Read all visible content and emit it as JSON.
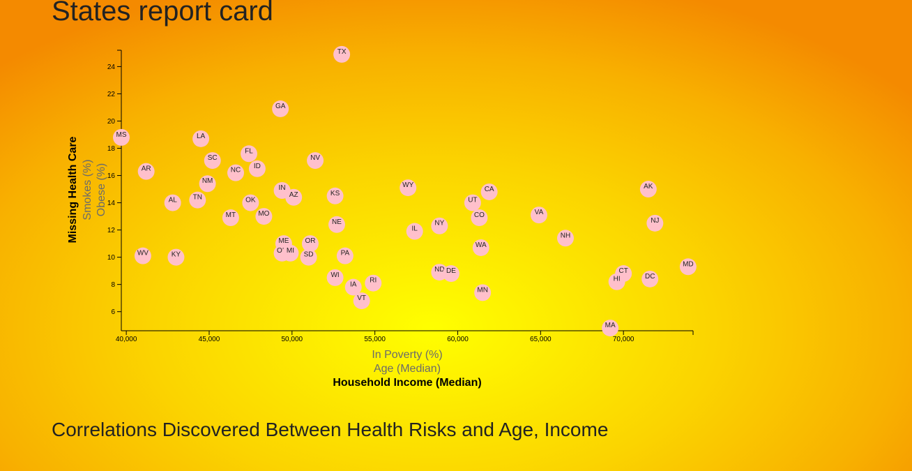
{
  "page": {
    "title": "States report card",
    "section_heading": "Correlations Discovered Between Health Risks and Age, Income"
  },
  "colors": {
    "marker_fill": "#ffc0cb",
    "axis": "#000000",
    "inactive_label": "#6b6b6b",
    "active_label": "#000000"
  },
  "chart_data": {
    "type": "scatter",
    "xlabel": "Household Income (Median)",
    "ylabel": "Missing Health Care",
    "x_axis_options": [
      {
        "label": "In Poverty (%)",
        "active": false
      },
      {
        "label": "Age (Median)",
        "active": false
      },
      {
        "label": "Household Income (Median)",
        "active": true
      }
    ],
    "y_axis_options": [
      {
        "label": "Missing Health Care",
        "active": true
      },
      {
        "label": "Smokes (%)",
        "active": false
      },
      {
        "label": "Obese (%)",
        "active": false
      }
    ],
    "xlim": [
      39700,
      74200
    ],
    "ylim": [
      4.6,
      25.2
    ],
    "x_ticks": [
      40000,
      45000,
      50000,
      55000,
      60000,
      65000,
      70000
    ],
    "x_tick_labels": [
      "40,000",
      "45,000",
      "50,000",
      "55,000",
      "60,000",
      "65,000",
      "70,000"
    ],
    "y_ticks": [
      6,
      8,
      10,
      12,
      14,
      16,
      18,
      20,
      22,
      24
    ],
    "y_tick_labels": [
      "6",
      "8",
      "10",
      "12",
      "14",
      "16",
      "18",
      "20",
      "22",
      "24"
    ],
    "grid": false,
    "points": [
      {
        "abbr": "TX",
        "x": 53000,
        "y": 24.9
      },
      {
        "abbr": "GA",
        "x": 49300,
        "y": 20.9
      },
      {
        "abbr": "MS",
        "x": 39700,
        "y": 18.8
      },
      {
        "abbr": "LA",
        "x": 44500,
        "y": 18.7
      },
      {
        "abbr": "FL",
        "x": 47400,
        "y": 17.6
      },
      {
        "abbr": "SC",
        "x": 45200,
        "y": 17.1
      },
      {
        "abbr": "NV",
        "x": 51400,
        "y": 17.1
      },
      {
        "abbr": "ID",
        "x": 47900,
        "y": 16.5
      },
      {
        "abbr": "AR",
        "x": 41200,
        "y": 16.3
      },
      {
        "abbr": "NC",
        "x": 46600,
        "y": 16.2
      },
      {
        "abbr": "NM",
        "x": 44900,
        "y": 15.4
      },
      {
        "abbr": "WY",
        "x": 57000,
        "y": 15.1
      },
      {
        "abbr": "AK",
        "x": 71500,
        "y": 15.0
      },
      {
        "abbr": "CA",
        "x": 61900,
        "y": 14.8
      },
      {
        "abbr": "IN",
        "x": 49400,
        "y": 14.9
      },
      {
        "abbr": "KS",
        "x": 52600,
        "y": 14.5
      },
      {
        "abbr": "AZ",
        "x": 50100,
        "y": 14.4
      },
      {
        "abbr": "TN",
        "x": 44300,
        "y": 14.2
      },
      {
        "abbr": "AL",
        "x": 42800,
        "y": 14.0
      },
      {
        "abbr": "OK",
        "x": 47500,
        "y": 14.0
      },
      {
        "abbr": "UT",
        "x": 60900,
        "y": 14.0
      },
      {
        "abbr": "VA",
        "x": 64900,
        "y": 13.1
      },
      {
        "abbr": "MT",
        "x": 46300,
        "y": 12.9
      },
      {
        "abbr": "MO",
        "x": 48300,
        "y": 13.0
      },
      {
        "abbr": "CO",
        "x": 61300,
        "y": 12.9
      },
      {
        "abbr": "NJ",
        "x": 71900,
        "y": 12.5
      },
      {
        "abbr": "NE",
        "x": 52700,
        "y": 12.4
      },
      {
        "abbr": "NY",
        "x": 58900,
        "y": 12.3
      },
      {
        "abbr": "IL",
        "x": 57400,
        "y": 11.9
      },
      {
        "abbr": "NH",
        "x": 66500,
        "y": 11.4
      },
      {
        "abbr": "ME",
        "x": 49500,
        "y": 11.0
      },
      {
        "abbr": "OR",
        "x": 51100,
        "y": 11.0
      },
      {
        "abbr": "WA",
        "x": 61400,
        "y": 10.7
      },
      {
        "abbr": "OH",
        "x": 49400,
        "y": 10.3
      },
      {
        "abbr": "MI",
        "x": 49900,
        "y": 10.3
      },
      {
        "abbr": "WV",
        "x": 41000,
        "y": 10.1
      },
      {
        "abbr": "PA",
        "x": 53200,
        "y": 10.1
      },
      {
        "abbr": "KY",
        "x": 43000,
        "y": 10.0
      },
      {
        "abbr": "SD",
        "x": 51000,
        "y": 10.0
      },
      {
        "abbr": "MD",
        "x": 73900,
        "y": 9.3
      },
      {
        "abbr": "ND",
        "x": 58900,
        "y": 8.9
      },
      {
        "abbr": "DE",
        "x": 59600,
        "y": 8.8
      },
      {
        "abbr": "CT",
        "x": 70000,
        "y": 8.8
      },
      {
        "abbr": "WI",
        "x": 52600,
        "y": 8.5
      },
      {
        "abbr": "DC",
        "x": 71600,
        "y": 8.4
      },
      {
        "abbr": "HI",
        "x": 69600,
        "y": 8.2
      },
      {
        "abbr": "RI",
        "x": 54900,
        "y": 8.1
      },
      {
        "abbr": "IA",
        "x": 53700,
        "y": 7.8
      },
      {
        "abbr": "MN",
        "x": 61500,
        "y": 7.4
      },
      {
        "abbr": "VT",
        "x": 54200,
        "y": 6.8
      },
      {
        "abbr": "MA",
        "x": 69200,
        "y": 4.8
      }
    ]
  }
}
